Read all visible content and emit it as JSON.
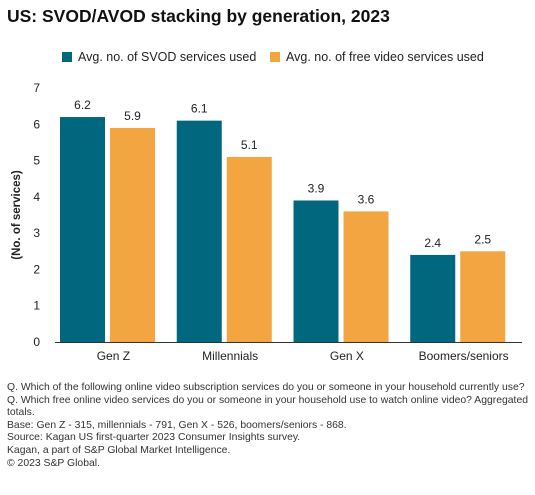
{
  "title": "US: SVOD/AVOD stacking by generation, 2023",
  "colors": {
    "svod": "#00677f",
    "free": "#f2a541",
    "axis": "#333333"
  },
  "chart_data": {
    "type": "bar",
    "title": "US: SVOD/AVOD stacking by generation, 2023",
    "xlabel": "",
    "ylabel": "(No. of services)",
    "ylim": [
      0,
      7
    ],
    "yticks": [
      0,
      1,
      2,
      3,
      4,
      5,
      6,
      7
    ],
    "grid": false,
    "legend": "top",
    "categories": [
      "Gen Z",
      "Millennials",
      "Gen X",
      "Boomers/seniors"
    ],
    "series": [
      {
        "name": "Avg. no. of SVOD services used",
        "color": "#00677f",
        "values": [
          6.2,
          6.1,
          3.9,
          2.4
        ]
      },
      {
        "name": "Avg. no. of free video services used",
        "color": "#f2a541",
        "values": [
          5.9,
          5.1,
          3.6,
          2.5
        ]
      }
    ]
  },
  "notes": [
    "Q. Which of the following online video subscription services do you or someone in your household currently use? Q. Which free online video services do you or someone in your household use to watch online video? Aggregated totals.",
    "Base: Gen Z - 315, millennials - 791, Gen X - 526, boomers/seniors - 868.",
    "Source: Kagan US first-quarter 2023 Consumer Insights survey.",
    "Kagan, a part of S&P Global Market Intelligence.",
    "© 2023 S&P Global."
  ]
}
